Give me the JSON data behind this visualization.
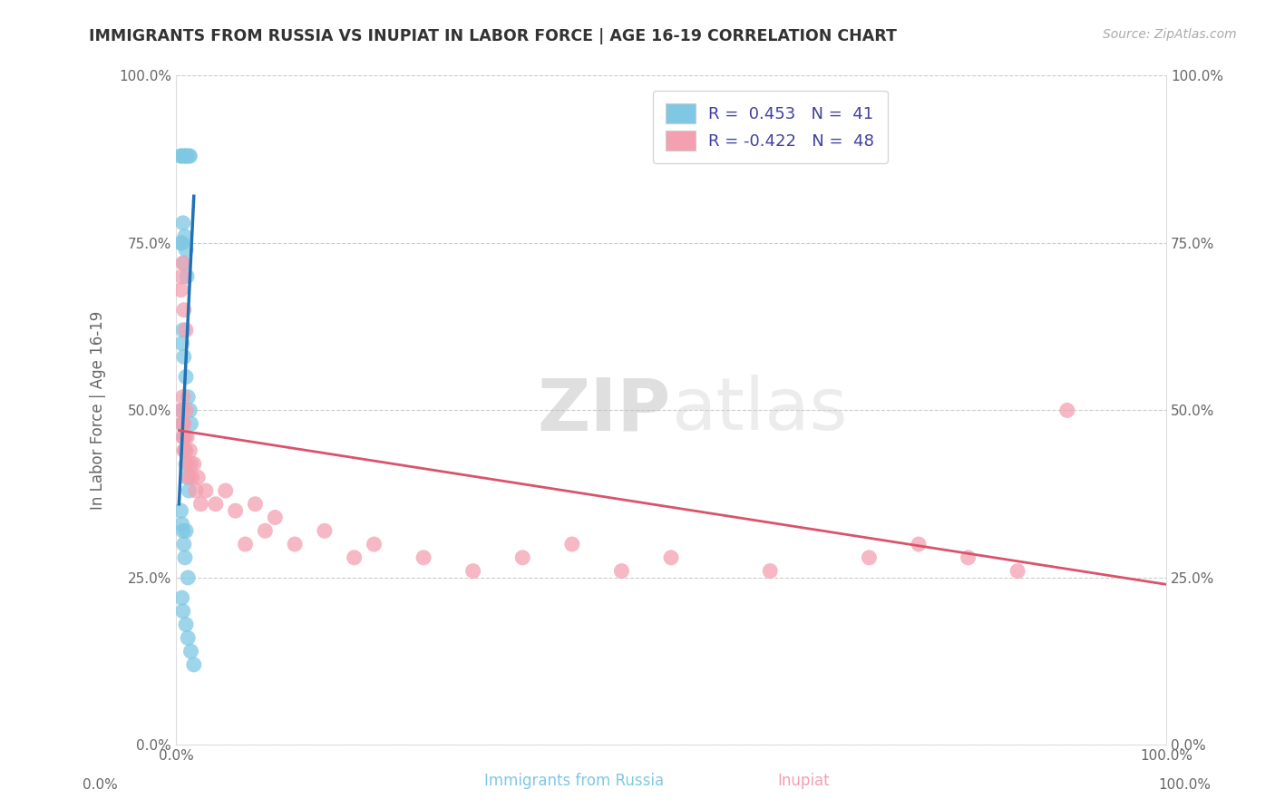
{
  "title": "IMMIGRANTS FROM RUSSIA VS INUPIAT IN LABOR FORCE | AGE 16-19 CORRELATION CHART",
  "source": "Source: ZipAtlas.com",
  "ylabel": "In Labor Force | Age 16-19",
  "xlim": [
    0.0,
    1.0
  ],
  "ylim": [
    0.0,
    1.0
  ],
  "xtick_labels": [
    "0.0%",
    "100.0%"
  ],
  "ytick_labels": [
    "0.0%",
    "25.0%",
    "50.0%",
    "75.0%",
    "100.0%"
  ],
  "ytick_values": [
    0.0,
    0.25,
    0.5,
    0.75,
    1.0
  ],
  "legend_r1": "R =  0.453",
  "legend_n1": "N =  41",
  "legend_r2": "R = -0.422",
  "legend_n2": "N =  48",
  "russia_color": "#7ec8e3",
  "inupiat_color": "#f4a0b0",
  "russia_trend_color": "#2171b5",
  "inupiat_trend_color": "#d9536a",
  "background_color": "#ffffff",
  "grid_color": "#cccccc",
  "watermark_zip": "ZIP",
  "watermark_atlas": "atlas",
  "russia_x": [
    0.005,
    0.005,
    0.008,
    0.01,
    0.01,
    0.013,
    0.014,
    0.005,
    0.006,
    0.007,
    0.008,
    0.009,
    0.01,
    0.011,
    0.006,
    0.007,
    0.008,
    0.01,
    0.012,
    0.014,
    0.015,
    0.006,
    0.007,
    0.008,
    0.009,
    0.01,
    0.011,
    0.013,
    0.005,
    0.006,
    0.007,
    0.008,
    0.009,
    0.01,
    0.012,
    0.006,
    0.007,
    0.01,
    0.012,
    0.015,
    0.018
  ],
  "russia_y": [
    0.88,
    0.88,
    0.88,
    0.88,
    0.88,
    0.88,
    0.88,
    0.75,
    0.75,
    0.78,
    0.72,
    0.76,
    0.74,
    0.7,
    0.6,
    0.62,
    0.58,
    0.55,
    0.52,
    0.5,
    0.48,
    0.5,
    0.48,
    0.46,
    0.44,
    0.42,
    0.4,
    0.38,
    0.35,
    0.33,
    0.32,
    0.3,
    0.28,
    0.32,
    0.25,
    0.22,
    0.2,
    0.18,
    0.16,
    0.14,
    0.12
  ],
  "inupiat_x": [
    0.005,
    0.006,
    0.007,
    0.007,
    0.008,
    0.008,
    0.009,
    0.01,
    0.01,
    0.011,
    0.012,
    0.013,
    0.014,
    0.015,
    0.016,
    0.018,
    0.02,
    0.022,
    0.025,
    0.03,
    0.04,
    0.05,
    0.06,
    0.07,
    0.08,
    0.09,
    0.1,
    0.12,
    0.15,
    0.18,
    0.2,
    0.25,
    0.3,
    0.35,
    0.4,
    0.45,
    0.5,
    0.6,
    0.7,
    0.75,
    0.8,
    0.85,
    0.9,
    0.005,
    0.006,
    0.007,
    0.008,
    0.01
  ],
  "inupiat_y": [
    0.5,
    0.48,
    0.52,
    0.46,
    0.48,
    0.44,
    0.46,
    0.5,
    0.44,
    0.46,
    0.42,
    0.4,
    0.44,
    0.42,
    0.4,
    0.42,
    0.38,
    0.4,
    0.36,
    0.38,
    0.36,
    0.38,
    0.35,
    0.3,
    0.36,
    0.32,
    0.34,
    0.3,
    0.32,
    0.28,
    0.3,
    0.28,
    0.26,
    0.28,
    0.3,
    0.26,
    0.28,
    0.26,
    0.28,
    0.3,
    0.28,
    0.26,
    0.5,
    0.68,
    0.7,
    0.72,
    0.65,
    0.62
  ],
  "russia_trend_x": [
    0.003,
    0.018
  ],
  "russia_trend_y": [
    0.36,
    0.82
  ],
  "inupiat_trend_x": [
    0.003,
    1.0
  ],
  "inupiat_trend_y": [
    0.47,
    0.24
  ]
}
